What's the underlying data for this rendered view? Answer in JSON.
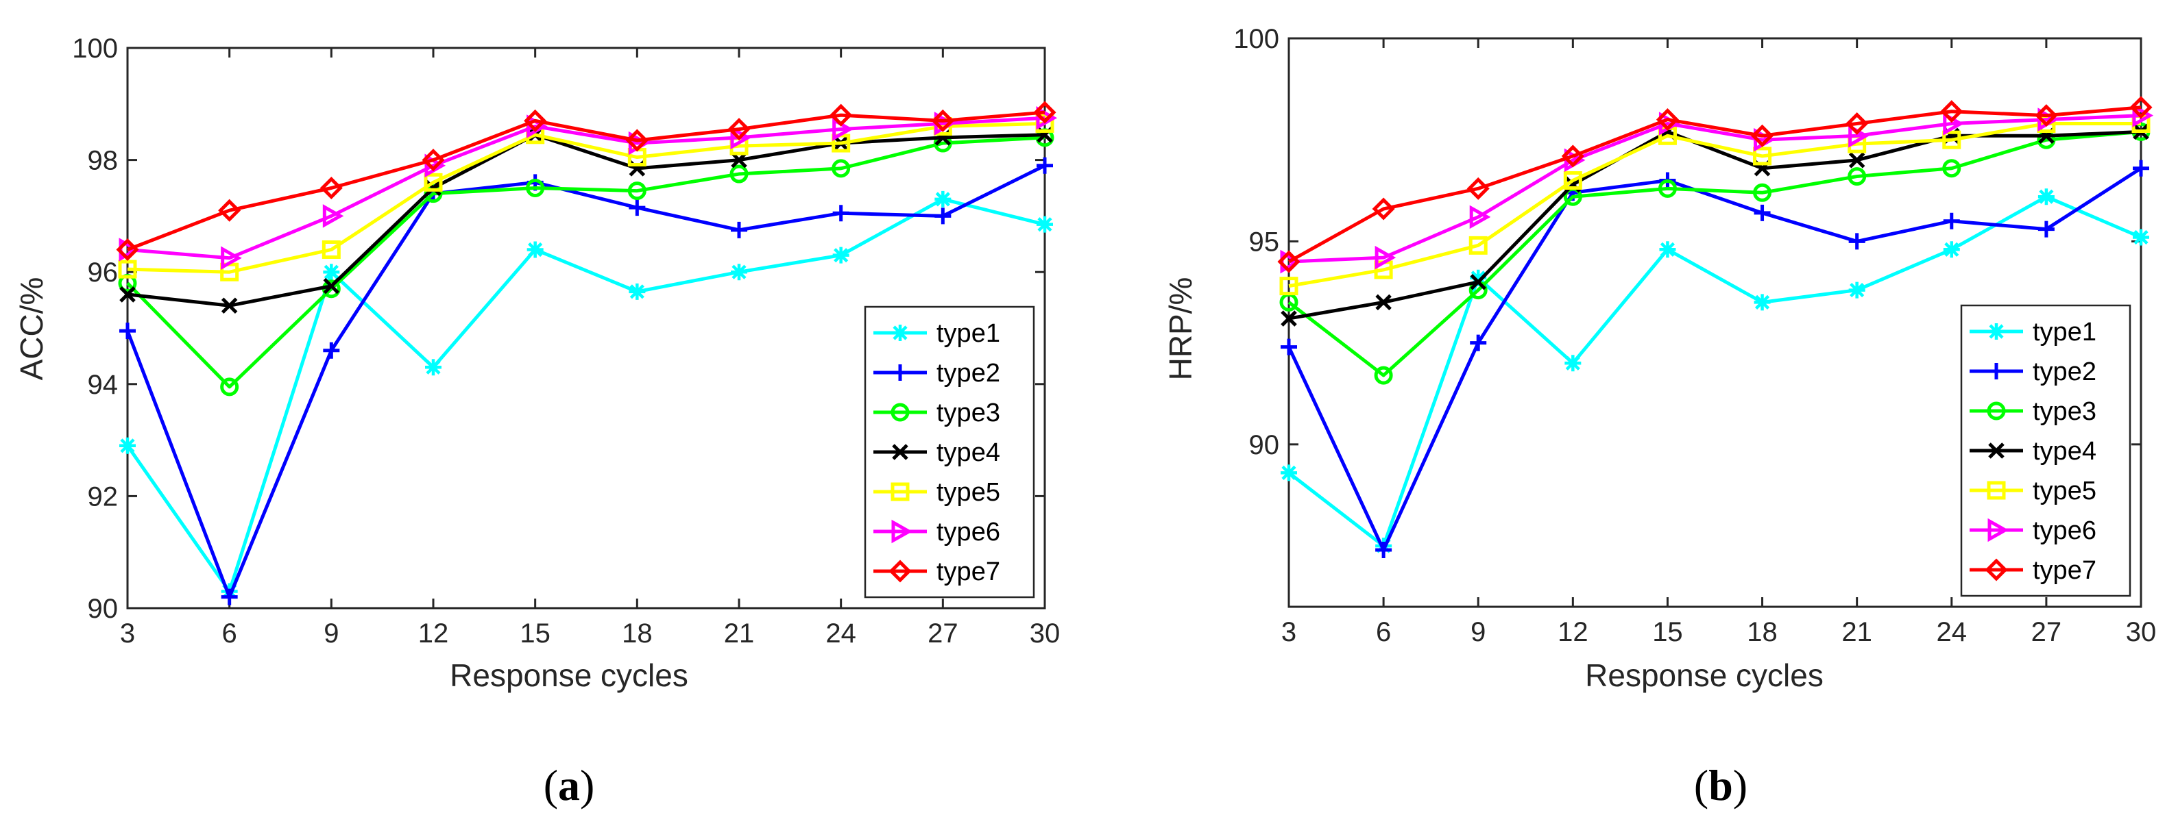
{
  "chart_data": [
    {
      "type": "line",
      "panel_label": "(a)",
      "panel_paren_open": "(",
      "panel_letter": "a",
      "panel_paren_close": ")",
      "xlabel": "Response cycles",
      "ylabel": "ACC/%",
      "x": [
        3,
        6,
        9,
        12,
        15,
        18,
        21,
        24,
        27,
        30
      ],
      "xlim": [
        3,
        30
      ],
      "ylim": [
        90,
        100
      ],
      "xticks": [
        "3",
        "6",
        "9",
        "12",
        "15",
        "18",
        "21",
        "24",
        "27",
        "30"
      ],
      "yticks": [
        "90",
        "92",
        "94",
        "96",
        "98",
        "100"
      ],
      "grid": false,
      "legend_position": "lower-right",
      "series": [
        {
          "name": "type1",
          "color": "#00FFFF",
          "marker": "asterisk",
          "values": [
            92.9,
            90.3,
            96.0,
            94.3,
            96.4,
            95.65,
            96.0,
            96.3,
            97.3,
            96.85
          ]
        },
        {
          "name": "type2",
          "color": "#0000FF",
          "marker": "plus",
          "values": [
            94.95,
            90.2,
            94.6,
            97.4,
            97.6,
            97.15,
            96.75,
            97.05,
            97.0,
            97.9
          ]
        },
        {
          "name": "type3",
          "color": "#00FF00",
          "marker": "circle",
          "values": [
            95.8,
            93.95,
            95.7,
            97.4,
            97.5,
            97.45,
            97.75,
            97.85,
            98.3,
            98.4
          ]
        },
        {
          "name": "type4",
          "color": "#000000",
          "marker": "x",
          "values": [
            95.6,
            95.4,
            95.75,
            97.5,
            98.45,
            97.85,
            98.0,
            98.3,
            98.4,
            98.45
          ]
        },
        {
          "name": "type5",
          "color": "#FFFF00",
          "marker": "square",
          "values": [
            96.05,
            96.0,
            96.4,
            97.6,
            98.45,
            98.05,
            98.25,
            98.3,
            98.6,
            98.65
          ]
        },
        {
          "name": "type6",
          "color": "#FF00FF",
          "marker": "triangle-right",
          "values": [
            96.4,
            96.25,
            97.0,
            97.9,
            98.6,
            98.3,
            98.4,
            98.55,
            98.65,
            98.75
          ]
        },
        {
          "name": "type7",
          "color": "#FF0000",
          "marker": "diamond",
          "values": [
            96.4,
            97.1,
            97.5,
            98.0,
            98.7,
            98.35,
            98.55,
            98.8,
            98.7,
            98.85
          ]
        }
      ]
    },
    {
      "type": "line",
      "panel_label": "(b)",
      "panel_paren_open": "(",
      "panel_letter": "b",
      "panel_paren_close": ")",
      "xlabel": "Response cycles",
      "ylabel": "HRP/%",
      "x": [
        3,
        6,
        9,
        12,
        15,
        18,
        21,
        24,
        27,
        30
      ],
      "xlim": [
        3,
        30
      ],
      "ylim": [
        86,
        100
      ],
      "xticks": [
        "3",
        "6",
        "9",
        "12",
        "15",
        "18",
        "21",
        "24",
        "27",
        "30"
      ],
      "yticks": [
        "90",
        "95",
        "100"
      ],
      "ytick_values": [
        90,
        95,
        100
      ],
      "grid": false,
      "legend_position": "lower-right",
      "series": [
        {
          "name": "type1",
          "color": "#00FFFF",
          "marker": "asterisk",
          "values": [
            89.3,
            87.5,
            94.1,
            92.0,
            94.8,
            93.5,
            93.8,
            94.8,
            96.1,
            95.1
          ]
        },
        {
          "name": "type2",
          "color": "#0000FF",
          "marker": "plus",
          "values": [
            92.4,
            87.4,
            92.5,
            96.2,
            96.5,
            95.7,
            95.0,
            95.5,
            95.3,
            96.8
          ]
        },
        {
          "name": "type3",
          "color": "#00FF00",
          "marker": "circle",
          "values": [
            93.5,
            91.7,
            93.8,
            96.1,
            96.3,
            96.2,
            96.6,
            96.8,
            97.5,
            97.7
          ]
        },
        {
          "name": "type4",
          "color": "#000000",
          "marker": "x",
          "values": [
            93.1,
            93.5,
            94.0,
            96.4,
            97.7,
            96.8,
            97.0,
            97.6,
            97.6,
            97.7
          ]
        },
        {
          "name": "type5",
          "color": "#FFFF00",
          "marker": "square",
          "values": [
            93.9,
            94.3,
            94.9,
            96.5,
            97.6,
            97.1,
            97.4,
            97.5,
            97.9,
            97.9
          ]
        },
        {
          "name": "type6",
          "color": "#FF00FF",
          "marker": "triangle-right",
          "values": [
            94.5,
            94.6,
            95.6,
            97.0,
            97.9,
            97.5,
            97.6,
            97.9,
            98.0,
            98.1
          ]
        },
        {
          "name": "type7",
          "color": "#FF0000",
          "marker": "diamond",
          "values": [
            94.5,
            95.8,
            96.3,
            97.1,
            98.0,
            97.6,
            97.9,
            98.2,
            98.1,
            98.3
          ]
        }
      ]
    }
  ]
}
